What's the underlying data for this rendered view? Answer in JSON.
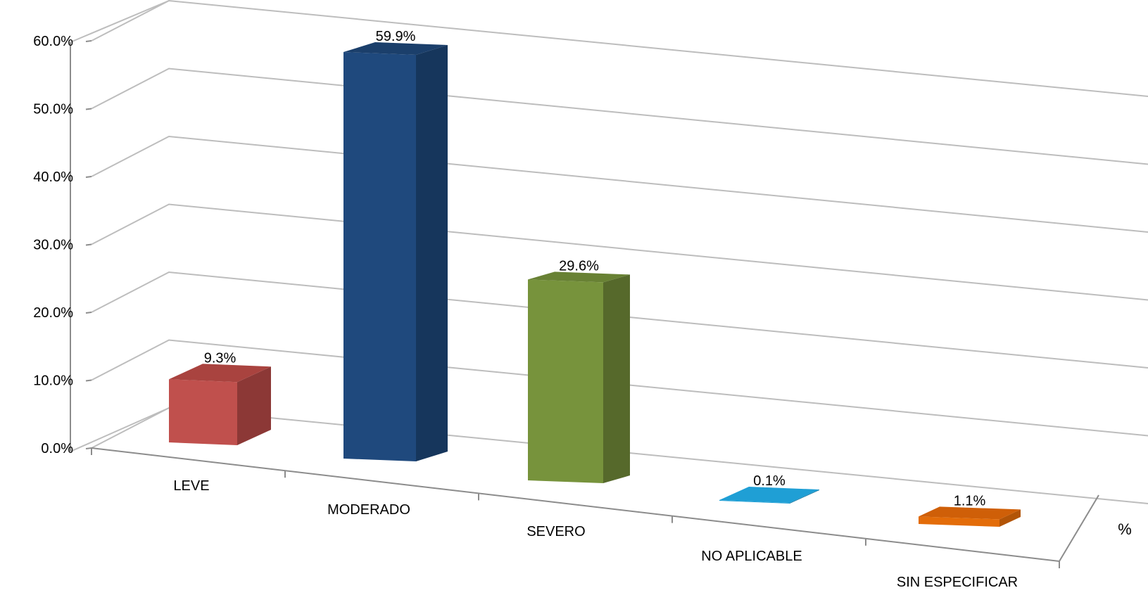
{
  "chart_data": {
    "type": "bar",
    "title": "",
    "xlabel": "",
    "ylabel": "",
    "ylim": [
      0,
      60
    ],
    "yticks": [
      "0.0%",
      "10.0%",
      "20.0%",
      "30.0%",
      "40.0%",
      "50.0%",
      "60.0%"
    ],
    "categories": [
      "LEVE",
      "MODERADO",
      "SEVERO",
      "NO APLICABLE",
      "SIN ESPECIFICAR"
    ],
    "series": [
      {
        "name": "%",
        "values": [
          9.3,
          59.9,
          29.6,
          0.1,
          1.1
        ],
        "labels": [
          "9.3%",
          "59.9%",
          "29.6%",
          "0.1%",
          "1.1%"
        ]
      }
    ],
    "bar_colors": [
      {
        "front": "#c0504d",
        "side": "#8c3836",
        "top": "#a9433f"
      },
      {
        "front": "#1f497d",
        "side": "#16365c",
        "top": "#1b3f6b"
      },
      {
        "front": "#77933c",
        "side": "#56692b",
        "top": "#688134"
      },
      {
        "front": "#1f9fd5",
        "side": "#1777a0",
        "top": "#1f9fd5"
      },
      {
        "front": "#e36c09",
        "side": "#b25407",
        "top": "#cf5f08"
      }
    ],
    "grid": true,
    "legend": "none",
    "style": "3d-column"
  }
}
